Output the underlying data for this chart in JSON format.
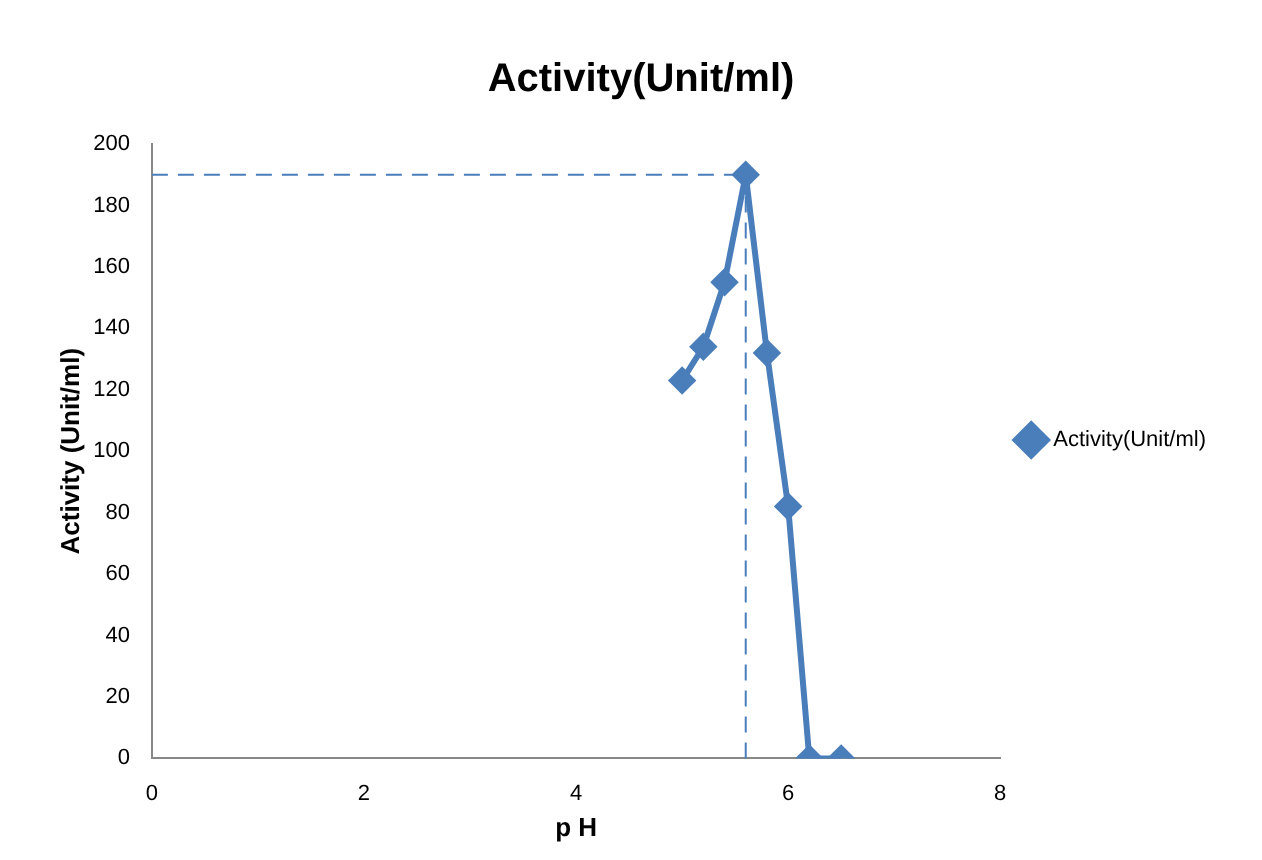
{
  "chart_data": {
    "type": "line",
    "title": "Activity(Unit/ml)",
    "xlabel": "p H",
    "ylabel": "Activity (Unit/ml)",
    "x": [
      5.0,
      5.2,
      5.4,
      5.6,
      5.8,
      6.0,
      6.2,
      6.5
    ],
    "series": [
      {
        "name": "Activity(Unit/ml)",
        "color": "#4a7ebb",
        "values": [
          123,
          134,
          155,
          190,
          132,
          82,
          0,
          0
        ]
      }
    ],
    "xlim": [
      0,
      8
    ],
    "xticks": [
      0,
      2,
      4,
      6,
      8
    ],
    "ylim": [
      0,
      200
    ],
    "yticks": [
      0,
      20,
      40,
      60,
      80,
      100,
      120,
      140,
      160,
      180,
      200
    ],
    "ref_lines": [
      {
        "axis": "y",
        "value": 190,
        "color": "#4a7ebb",
        "line_style": "dashed"
      },
      {
        "axis": "x",
        "value": 5.6,
        "color": "#4a7ebb",
        "line_style": "dashed"
      }
    ],
    "grid": false,
    "legend": "right",
    "marker": "diamond",
    "line_style": "solid"
  }
}
